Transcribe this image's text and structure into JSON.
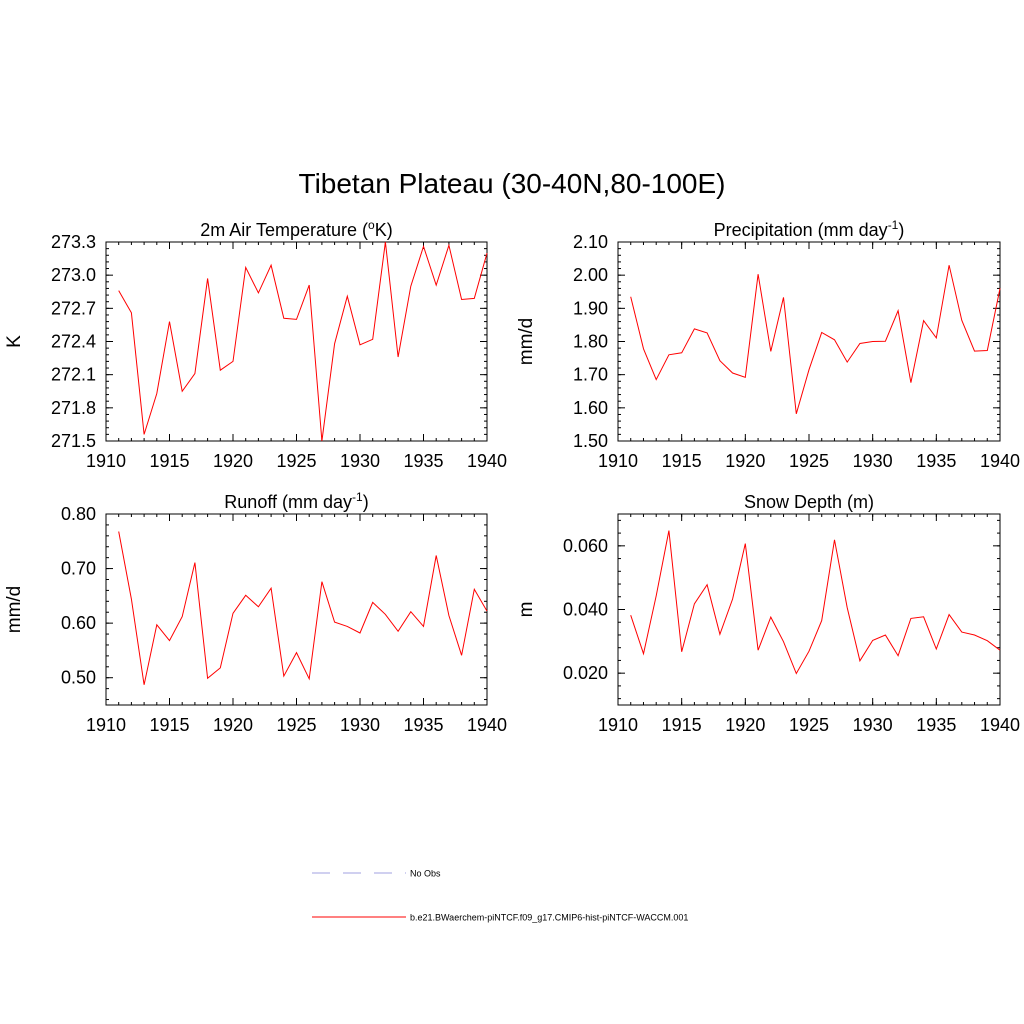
{
  "page": {
    "title": "Tibetan Plateau (30-40N,80-100E)"
  },
  "legend": [
    {
      "label": "No Obs",
      "color": "#a0a0e0",
      "style": "dashed"
    },
    {
      "label": "b.e21.BWaerchem-piNTCF.f09_g17.CMIP6-hist-piNTCF-WACCM.001",
      "color": "#ff0000",
      "style": "solid"
    }
  ],
  "chart_data": [
    {
      "type": "line",
      "title": "2m Air Temperature (",
      "title_super": "o",
      "title_suffix": "K)",
      "ylabel": "K",
      "xlim": [
        1910,
        1940
      ],
      "ylim": [
        271.5,
        273.3
      ],
      "xticks": [
        1910,
        1915,
        1920,
        1925,
        1930,
        1935,
        1940
      ],
      "yticks": [
        271.5,
        271.8,
        272.1,
        272.4,
        272.7,
        273.0,
        273.3
      ],
      "ytick_labels": [
        "271.5",
        "271.8",
        "272.1",
        "272.4",
        "272.7",
        "273.0",
        "273.3"
      ],
      "series": [
        {
          "color": "#ff0000",
          "x": [
            1911,
            1912,
            1913,
            1914,
            1915,
            1916,
            1917,
            1918,
            1919,
            1920,
            1921,
            1922,
            1923,
            1924,
            1925,
            1926,
            1927,
            1928,
            1929,
            1930,
            1931,
            1932,
            1933,
            1934,
            1935,
            1936,
            1937,
            1938,
            1939,
            1940
          ],
          "values": [
            272.86,
            272.66,
            271.56,
            271.93,
            272.58,
            271.95,
            272.11,
            272.97,
            272.14,
            272.22,
            273.07,
            272.84,
            273.09,
            272.61,
            272.6,
            272.91,
            271.5,
            272.38,
            272.81,
            272.37,
            272.42,
            273.3,
            272.26,
            272.9,
            273.26,
            272.91,
            273.27,
            272.78,
            272.79,
            273.2
          ]
        }
      ]
    },
    {
      "type": "line",
      "title": "Precipitation (mm day",
      "title_super": "-1",
      "title_suffix": ")",
      "ylabel": "mm/d",
      "xlim": [
        1910,
        1940
      ],
      "ylim": [
        1.5,
        2.1
      ],
      "xticks": [
        1910,
        1915,
        1920,
        1925,
        1930,
        1935,
        1940
      ],
      "yticks": [
        1.5,
        1.6,
        1.7,
        1.8,
        1.9,
        2.0,
        2.1
      ],
      "ytick_labels": [
        "1.50",
        "1.60",
        "1.70",
        "1.80",
        "1.90",
        "2.00",
        "2.10"
      ],
      "series": [
        {
          "color": "#ff0000",
          "x": [
            1911,
            1912,
            1913,
            1914,
            1915,
            1916,
            1917,
            1918,
            1919,
            1920,
            1921,
            1922,
            1923,
            1924,
            1925,
            1926,
            1927,
            1928,
            1929,
            1930,
            1931,
            1932,
            1933,
            1934,
            1935,
            1936,
            1937,
            1938,
            1939,
            1940
          ],
          "values": [
            1.935,
            1.778,
            1.685,
            1.76,
            1.766,
            1.838,
            1.826,
            1.742,
            1.705,
            1.692,
            2.003,
            1.77,
            1.933,
            1.582,
            1.715,
            1.827,
            1.805,
            1.738,
            1.794,
            1.8,
            1.801,
            1.893,
            1.676,
            1.863,
            1.811,
            2.03,
            1.864,
            1.771,
            1.773,
            1.96
          ]
        }
      ]
    },
    {
      "type": "line",
      "title": "Runoff (mm day",
      "title_super": "-1",
      "title_suffix": ")",
      "ylabel": "mm/d",
      "xlim": [
        1910,
        1940
      ],
      "ylim": [
        0.45,
        0.8
      ],
      "xticks": [
        1910,
        1915,
        1920,
        1925,
        1930,
        1935,
        1940
      ],
      "yticks": [
        0.5,
        0.6,
        0.7,
        0.8
      ],
      "ytick_labels": [
        "0.50",
        "0.60",
        "0.70",
        "0.80"
      ],
      "series": [
        {
          "color": "#ff0000",
          "x": [
            1911,
            1912,
            1913,
            1914,
            1915,
            1916,
            1917,
            1918,
            1919,
            1920,
            1921,
            1922,
            1923,
            1924,
            1925,
            1926,
            1927,
            1928,
            1929,
            1930,
            1931,
            1932,
            1933,
            1934,
            1935,
            1936,
            1937,
            1938,
            1939,
            1940
          ],
          "values": [
            0.768,
            0.644,
            0.487,
            0.597,
            0.568,
            0.612,
            0.711,
            0.499,
            0.518,
            0.618,
            0.651,
            0.63,
            0.664,
            0.503,
            0.546,
            0.498,
            0.676,
            0.602,
            0.594,
            0.582,
            0.638,
            0.616,
            0.585,
            0.621,
            0.594,
            0.724,
            0.614,
            0.541,
            0.662,
            0.622
          ]
        }
      ]
    },
    {
      "type": "line",
      "title": "Snow Depth (m)",
      "title_super": "",
      "title_suffix": "",
      "ylabel": "m",
      "xlim": [
        1910,
        1940
      ],
      "ylim": [
        0.01,
        0.07
      ],
      "xticks": [
        1910,
        1915,
        1920,
        1925,
        1930,
        1935,
        1940
      ],
      "yticks": [
        0.02,
        0.04,
        0.06
      ],
      "ytick_labels": [
        "0.020",
        "0.040",
        "0.060"
      ],
      "series": [
        {
          "color": "#ff0000",
          "x": [
            1911,
            1912,
            1913,
            1914,
            1915,
            1916,
            1917,
            1918,
            1919,
            1920,
            1921,
            1922,
            1923,
            1924,
            1925,
            1926,
            1927,
            1928,
            1929,
            1930,
            1931,
            1932,
            1933,
            1934,
            1935,
            1936,
            1937,
            1938,
            1939,
            1940
          ],
          "values": [
            0.0382,
            0.0261,
            0.0443,
            0.0648,
            0.0267,
            0.0418,
            0.0478,
            0.0322,
            0.0433,
            0.0607,
            0.0272,
            0.0376,
            0.0299,
            0.0199,
            0.0269,
            0.0365,
            0.0619,
            0.0406,
            0.0239,
            0.0303,
            0.032,
            0.0255,
            0.0372,
            0.0377,
            0.0276,
            0.0384,
            0.0329,
            0.032,
            0.0302,
            0.0272
          ]
        }
      ]
    }
  ]
}
